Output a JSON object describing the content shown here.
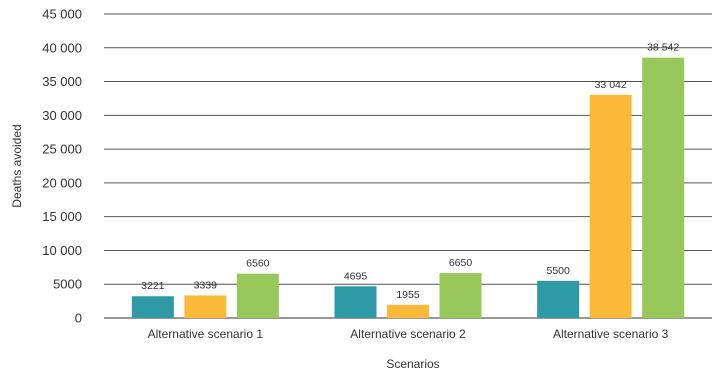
{
  "chart_data": {
    "type": "bar",
    "title": "",
    "xlabel": "Scenarios",
    "ylabel": "Deaths avoided",
    "ylim": [
      0,
      45000
    ],
    "yticks": [
      0,
      5000,
      10000,
      15000,
      20000,
      25000,
      30000,
      35000,
      40000,
      45000
    ],
    "ytick_labels": [
      "0",
      "5000",
      "10 000",
      "15 000",
      "20 000",
      "25 000",
      "30 000",
      "35 000",
      "40 000",
      "45 000"
    ],
    "grid": true,
    "legend": "none",
    "categories": [
      "Alternative scenario 1",
      "Alternative scenario 2",
      "Alternative scenario 3"
    ],
    "series": [
      {
        "color": "#2E9AA5",
        "values": [
          3221,
          4695,
          5500
        ],
        "labels": [
          "3221",
          "4695",
          "5500"
        ]
      },
      {
        "color": "#FBB93A",
        "values": [
          3339,
          1955,
          33042
        ],
        "labels": [
          "3339",
          "1955",
          "33 042"
        ]
      },
      {
        "color": "#99C85A",
        "values": [
          6560,
          6650,
          38542
        ],
        "labels": [
          "6560",
          "6650",
          "38 542"
        ]
      }
    ]
  }
}
